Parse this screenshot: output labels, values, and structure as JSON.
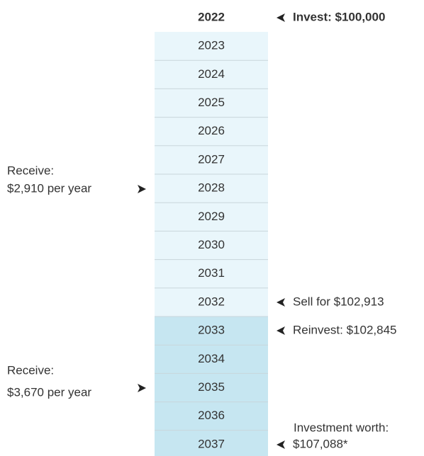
{
  "years": [
    "2022",
    "2023",
    "2024",
    "2025",
    "2026",
    "2027",
    "2028",
    "2029",
    "2030",
    "2031",
    "2032",
    "2033",
    "2034",
    "2035",
    "2036",
    "2037"
  ],
  "left_notes": [
    {
      "label": "Receive:",
      "amount": "$2,910 per year"
    },
    {
      "label": "Receive:",
      "amount": "$3,670 per year"
    }
  ],
  "right_notes": [
    {
      "text": "Invest: $100,000"
    },
    {
      "text": "Sell for $102,913"
    },
    {
      "text": "Reinvest: $102,845"
    },
    {
      "label": "Investment worth:",
      "text": "$107,088*"
    }
  ]
}
